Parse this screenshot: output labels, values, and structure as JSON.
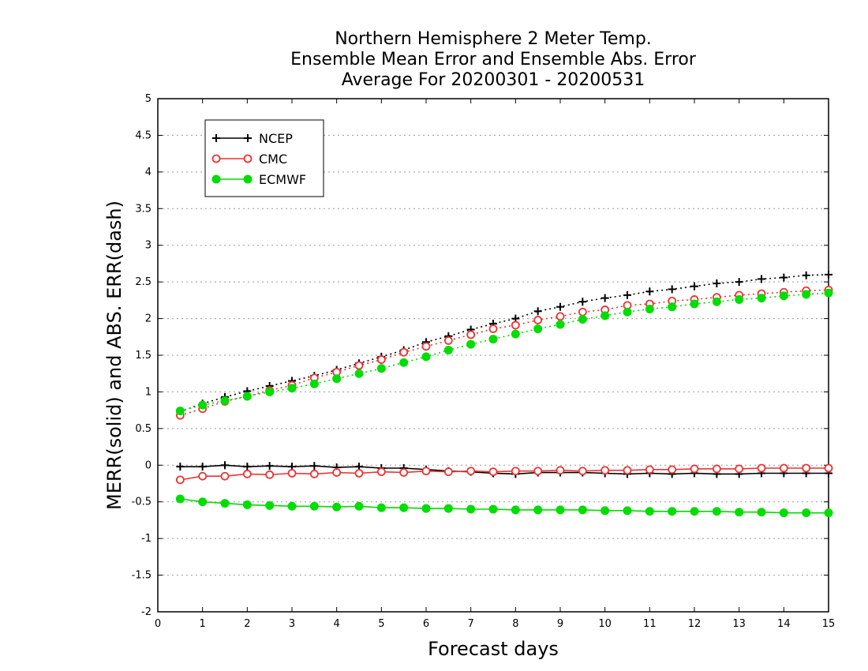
{
  "chart_data": {
    "type": "line",
    "title": [
      "Northern Hemisphere 2 Meter Temp.",
      "Ensemble Mean Error and Ensemble Abs. Error",
      "Average For 20200301 - 20200531"
    ],
    "xlabel": "Forecast days",
    "ylabel": "MERR(solid) and ABS. ERR(dash)",
    "xlim": [
      0,
      15
    ],
    "ylim": [
      -2,
      5
    ],
    "xticks": [
      "0",
      "1",
      "2",
      "3",
      "4",
      "5",
      "6",
      "7",
      "8",
      "9",
      "10",
      "11",
      "12",
      "13",
      "14",
      "15"
    ],
    "yticks": [
      "-2",
      "-1.5",
      "-1",
      "-0.5",
      "0",
      "0.5",
      "1",
      "1.5",
      "2",
      "2.5",
      "3",
      "3.5",
      "4",
      "4.5",
      "5"
    ],
    "grid": "horizontal dotted",
    "legend_position": "top-left",
    "x": [
      0.5,
      1,
      1.5,
      2,
      2.5,
      3,
      3.5,
      4,
      4.5,
      5,
      5.5,
      6,
      6.5,
      7,
      7.5,
      8,
      8.5,
      9,
      9.5,
      10,
      10.5,
      11,
      11.5,
      12,
      12.5,
      13,
      13.5,
      14,
      14.5,
      15
    ],
    "series": [
      {
        "name": "NCEP",
        "color": "#000000",
        "marker": "plus",
        "merr": [
          -0.02,
          -0.02,
          0.0,
          -0.02,
          -0.01,
          -0.02,
          -0.01,
          -0.03,
          -0.02,
          -0.04,
          -0.04,
          -0.06,
          -0.08,
          -0.09,
          -0.11,
          -0.12,
          -0.1,
          -0.1,
          -0.1,
          -0.11,
          -0.12,
          -0.11,
          -0.12,
          -0.11,
          -0.12,
          -0.12,
          -0.11,
          -0.11,
          -0.11,
          -0.11
        ],
        "abs_err": [
          0.73,
          0.84,
          0.93,
          1.01,
          1.08,
          1.15,
          1.22,
          1.3,
          1.39,
          1.48,
          1.57,
          1.68,
          1.76,
          1.85,
          1.93,
          2.0,
          2.1,
          2.16,
          2.23,
          2.28,
          2.32,
          2.37,
          2.4,
          2.44,
          2.48,
          2.5,
          2.54,
          2.56,
          2.59,
          2.6
        ]
      },
      {
        "name": "CMC",
        "color": "#ee3333",
        "marker": "open-circle",
        "merr": [
          -0.2,
          -0.15,
          -0.15,
          -0.12,
          -0.13,
          -0.11,
          -0.12,
          -0.1,
          -0.11,
          -0.09,
          -0.1,
          -0.08,
          -0.09,
          -0.08,
          -0.09,
          -0.08,
          -0.08,
          -0.07,
          -0.08,
          -0.07,
          -0.07,
          -0.06,
          -0.06,
          -0.05,
          -0.05,
          -0.05,
          -0.04,
          -0.04,
          -0.04,
          -0.04
        ],
        "abs_err": [
          0.68,
          0.77,
          0.87,
          0.94,
          1.02,
          1.09,
          1.19,
          1.27,
          1.36,
          1.44,
          1.54,
          1.62,
          1.7,
          1.78,
          1.86,
          1.91,
          1.98,
          2.03,
          2.09,
          2.12,
          2.18,
          2.2,
          2.24,
          2.26,
          2.29,
          2.32,
          2.34,
          2.36,
          2.38,
          2.39
        ]
      },
      {
        "name": "ECMWF",
        "color": "#00dd00",
        "marker": "filled-circle",
        "merr": [
          -0.46,
          -0.5,
          -0.52,
          -0.54,
          -0.55,
          -0.56,
          -0.56,
          -0.57,
          -0.56,
          -0.58,
          -0.58,
          -0.59,
          -0.59,
          -0.6,
          -0.6,
          -0.61,
          -0.61,
          -0.61,
          -0.61,
          -0.62,
          -0.62,
          -0.63,
          -0.63,
          -0.63,
          -0.63,
          -0.64,
          -0.64,
          -0.65,
          -0.65,
          -0.65
        ],
        "abs_err": [
          0.74,
          0.82,
          0.88,
          0.94,
          1.0,
          1.05,
          1.11,
          1.18,
          1.25,
          1.32,
          1.4,
          1.48,
          1.57,
          1.65,
          1.72,
          1.79,
          1.86,
          1.92,
          1.99,
          2.04,
          2.09,
          2.13,
          2.16,
          2.2,
          2.23,
          2.26,
          2.28,
          2.31,
          2.33,
          2.35
        ]
      }
    ]
  }
}
